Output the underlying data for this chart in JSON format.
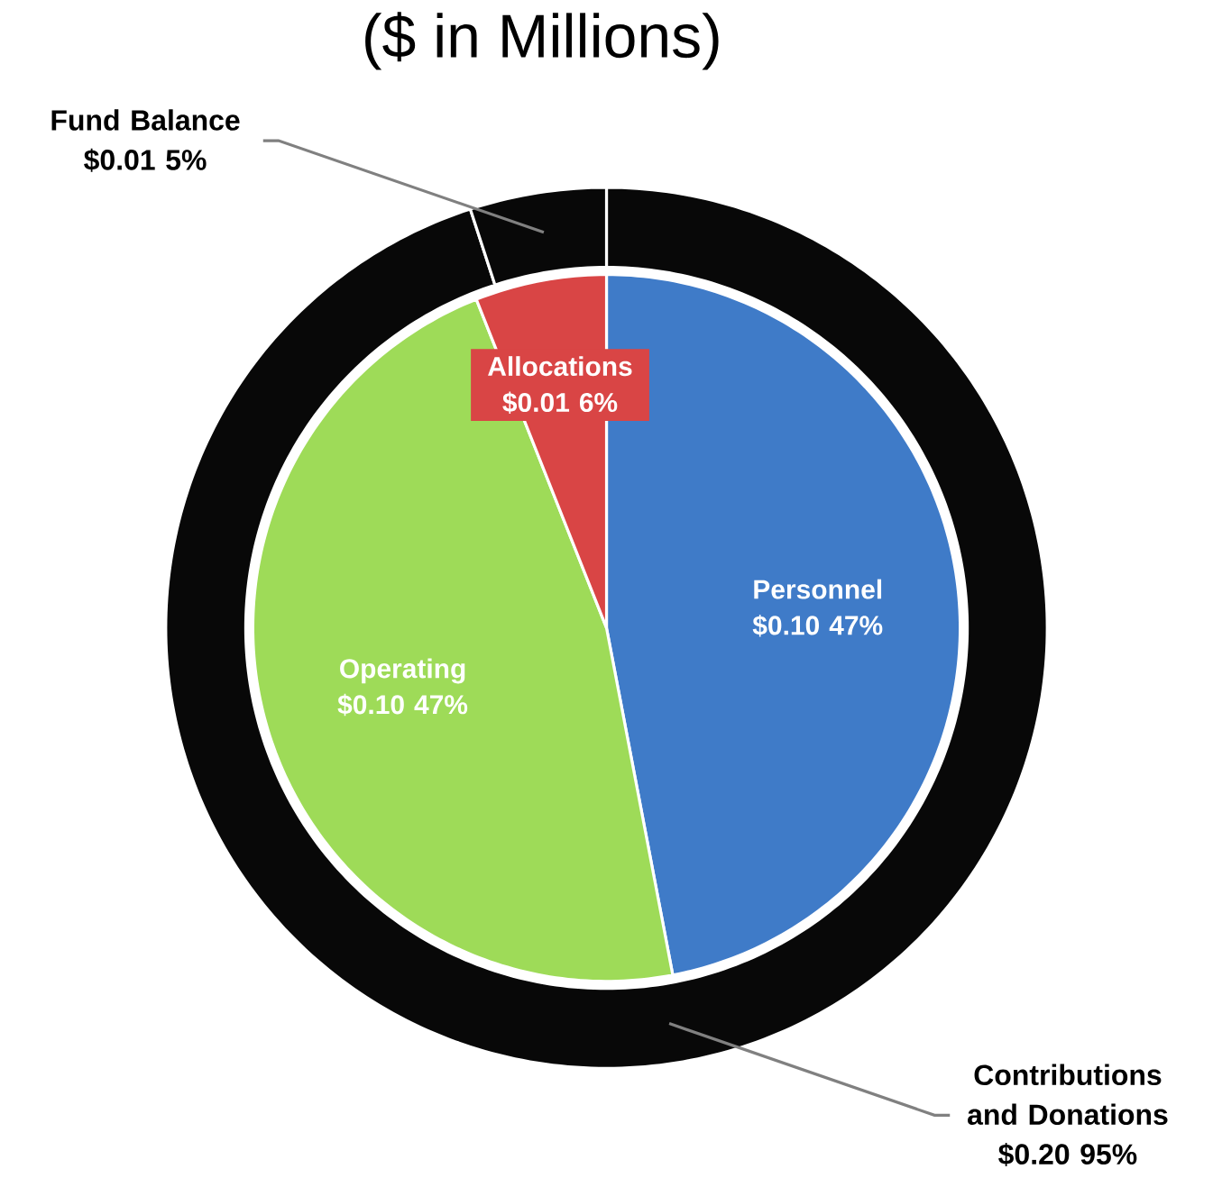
{
  "chart_data": [
    {
      "type": "donut",
      "title": "($ in Millions)",
      "categories": [
        "Contributions and Donations",
        "Fund Balance"
      ],
      "values": [
        95,
        5
      ],
      "value_labels": [
        "$0.20 95%",
        "$0.01 5%"
      ],
      "colors": [
        "#080808",
        "#080808"
      ]
    },
    {
      "type": "pie",
      "categories": [
        "Personnel",
        "Operating",
        "Allocations"
      ],
      "values": [
        47,
        47,
        6
      ],
      "value_labels": [
        "$0.10 47%",
        "$0.10 47%",
        "$0.01 6%"
      ],
      "colors": [
        "#3f7bc8",
        "#9edb58",
        "#d94545"
      ]
    }
  ]
}
